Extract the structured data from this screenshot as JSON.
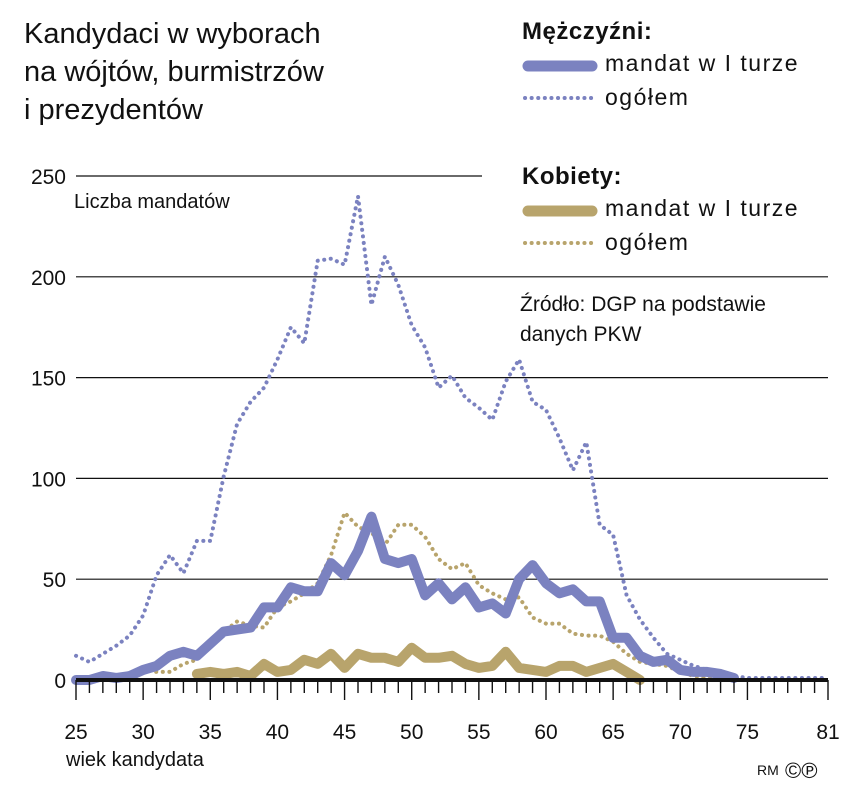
{
  "title_lines": [
    "Kandydaci w wyborach",
    "na wójtów, burmistrzów",
    "i prezydentów"
  ],
  "legend": {
    "men_header": "Mężczyźni:",
    "women_header": "Kobiety:",
    "first_round": "mandat w I turze",
    "total": "ogółem"
  },
  "source": [
    "Źródło: DGP na podstawie",
    "danych PKW"
  ],
  "credit": {
    "text": "RM",
    "icons": "©℗"
  },
  "colors": {
    "men": "#7b82c0",
    "women": "#b8a46c",
    "grid": "#111111"
  },
  "chart_data": {
    "type": "line",
    "ylabel": "Liczba mandatów",
    "xlabel": "wiek kandydata",
    "ylim": [
      0,
      250
    ],
    "xlim": [
      25,
      81
    ],
    "yticks": [
      0,
      50,
      100,
      150,
      200,
      250
    ],
    "xticks": [
      25,
      30,
      35,
      40,
      45,
      50,
      55,
      60,
      65,
      70,
      75,
      81
    ],
    "x": [
      25,
      26,
      27,
      28,
      29,
      30,
      31,
      32,
      33,
      34,
      35,
      36,
      37,
      38,
      39,
      40,
      41,
      42,
      43,
      44,
      45,
      46,
      47,
      48,
      49,
      50,
      51,
      52,
      53,
      54,
      55,
      56,
      57,
      58,
      59,
      60,
      61,
      62,
      63,
      64,
      65,
      66,
      67,
      68,
      69,
      70,
      71,
      72,
      73,
      74,
      75,
      76,
      77,
      78,
      79,
      80,
      81
    ],
    "series": [
      {
        "name": "Mężczyźni: ogółem",
        "style": "dotted",
        "color": "#7b82c0",
        "values": [
          12,
          9,
          13,
          17,
          22,
          32,
          52,
          62,
          53,
          69,
          69,
          101,
          127,
          138,
          145,
          159,
          175,
          167,
          208,
          209,
          206,
          240,
          186,
          210,
          196,
          176,
          165,
          145,
          151,
          140,
          135,
          129,
          148,
          159,
          138,
          134,
          120,
          104,
          118,
          77,
          72,
          42,
          30,
          21,
          13,
          10,
          7,
          5,
          3,
          2,
          1,
          1,
          1,
          1,
          1,
          1,
          1
        ]
      },
      {
        "name": "Mężczyźni: mandat w I turze",
        "style": "solid-thick",
        "color": "#7b82c0",
        "values": [
          0,
          0,
          2,
          1,
          2,
          5,
          7,
          12,
          14,
          12,
          18,
          24,
          25,
          26,
          36,
          36,
          46,
          44,
          44,
          58,
          52,
          64,
          81,
          60,
          58,
          60,
          42,
          48,
          40,
          46,
          36,
          38,
          33,
          50,
          57,
          48,
          43,
          45,
          39,
          39,
          21,
          21,
          12,
          9,
          10,
          5,
          4,
          4,
          3,
          1,
          null,
          null,
          null,
          null,
          null,
          null,
          null
        ]
      },
      {
        "name": "Kobiety: ogółem",
        "style": "dotted",
        "color": "#b8a46c",
        "values": [
          null,
          null,
          null,
          null,
          null,
          5,
          4,
          4,
          8,
          10,
          17,
          24,
          29,
          27,
          26,
          36,
          39,
          43,
          48,
          62,
          83,
          76,
          73,
          67,
          77,
          77,
          71,
          60,
          55,
          58,
          47,
          43,
          40,
          41,
          31,
          28,
          28,
          23,
          22,
          22,
          19,
          13,
          9,
          8,
          7,
          4,
          2,
          1,
          0,
          null,
          null,
          null,
          null,
          null,
          null,
          null,
          null
        ]
      },
      {
        "name": "Kobiety: mandat w I turze",
        "style": "solid-thick",
        "color": "#b8a46c",
        "values": [
          null,
          null,
          null,
          null,
          null,
          null,
          null,
          null,
          null,
          3,
          4,
          3,
          4,
          2,
          8,
          4,
          5,
          10,
          8,
          13,
          6,
          13,
          11,
          11,
          9,
          16,
          11,
          11,
          12,
          8,
          6,
          7,
          14,
          6,
          5,
          4,
          7,
          7,
          4,
          6,
          8,
          4,
          0,
          null,
          null,
          null,
          null,
          null,
          null,
          null,
          null,
          null,
          null,
          null,
          null,
          null,
          null
        ]
      }
    ]
  }
}
